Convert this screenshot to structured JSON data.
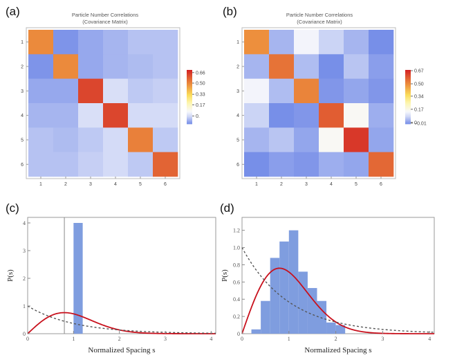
{
  "chart_data": [
    {
      "panel": "(a)",
      "type": "heatmap",
      "title": "Particle Number Correlations",
      "subtitle": "(Covariance Matrix)",
      "row_labels": [
        "1",
        "2",
        "3",
        "4",
        "5",
        "6"
      ],
      "col_labels": [
        "1",
        "2",
        "3",
        "4",
        "5",
        "6"
      ],
      "values": [
        [
          0.5,
          -0.1,
          -0.07,
          -0.05,
          -0.03,
          -0.03
        ],
        [
          -0.1,
          0.5,
          -0.07,
          -0.05,
          -0.04,
          -0.03
        ],
        [
          -0.07,
          -0.07,
          0.64,
          0.02,
          -0.02,
          -0.01
        ],
        [
          -0.05,
          -0.05,
          0.02,
          0.64,
          0.01,
          0.01
        ],
        [
          -0.03,
          -0.04,
          -0.02,
          0.01,
          0.52,
          -0.02
        ],
        [
          -0.03,
          -0.03,
          -0.01,
          0.01,
          -0.02,
          0.58
        ]
      ],
      "legend": {
        "ticks": [
          "0.66",
          "0.50",
          "0.33",
          "0.17",
          "0."
        ],
        "tick_values": [
          0.66,
          0.5,
          0.33,
          0.17,
          0.0
        ],
        "min": -0.12,
        "max": 0.7
      }
    },
    {
      "panel": "(b)",
      "type": "heatmap",
      "title": "Particle Number Correlations",
      "subtitle": "(Covariance Matrix)",
      "row_labels": [
        "1",
        "2",
        "3",
        "4",
        "5",
        "6"
      ],
      "col_labels": [
        "1",
        "2",
        "3",
        "4",
        "5",
        "6"
      ],
      "values": [
        [
          0.5,
          0.04,
          0.14,
          0.08,
          0.04,
          -0.01
        ],
        [
          0.04,
          0.55,
          0.05,
          -0.01,
          0.06,
          0.01
        ],
        [
          0.14,
          0.05,
          0.52,
          0.0,
          0.02,
          0.0
        ],
        [
          0.08,
          -0.01,
          0.0,
          0.59,
          0.16,
          0.03
        ],
        [
          0.04,
          0.06,
          0.02,
          0.16,
          0.65,
          0.02
        ],
        [
          -0.01,
          0.01,
          0.0,
          0.03,
          0.02,
          0.57
        ]
      ],
      "legend": {
        "ticks": [
          "0.67",
          "0.50",
          "0.34",
          "0.17",
          "0",
          "−0.01"
        ],
        "tick_values": [
          0.67,
          0.5,
          0.34,
          0.17,
          0.0,
          -0.01
        ],
        "min": -0.02,
        "max": 0.68
      }
    },
    {
      "panel": "(c)",
      "type": "bar",
      "xlabel": "Normalized Spacing s",
      "ylabel": "P(s)",
      "xlim": [
        0,
        4.1
      ],
      "ylim": [
        0,
        4.2
      ],
      "x_ticks": [
        "0",
        "1",
        "2",
        "3",
        "4"
      ],
      "y_ticks": [
        "0",
        "1",
        "2",
        "3",
        "4"
      ],
      "histogram": {
        "bin_edges": [
          1.0,
          1.2
        ],
        "heights": [
          4.0
        ],
        "color": "#7f9ddf"
      },
      "vertical_marker_x": 0.8,
      "curves": [
        {
          "kind": "wigner_surmise",
          "style": "solid",
          "color": "#c8101c"
        },
        {
          "kind": "poisson_exp",
          "style": "dashed",
          "color": "#555555"
        }
      ]
    },
    {
      "panel": "(d)",
      "type": "bar",
      "xlabel": "Normalized Spacing s",
      "ylabel": "P(s)",
      "xlim": [
        0,
        4.1
      ],
      "ylim": [
        0,
        1.35
      ],
      "x_ticks": [
        "0",
        "1",
        "2",
        "3",
        "4"
      ],
      "y_ticks": [
        "0",
        "0.2",
        "0.4",
        "0.6",
        "0.8",
        "1.0",
        "1.2"
      ],
      "histogram": {
        "bin_edges": [
          0.2,
          0.4,
          0.6,
          0.8,
          1.0,
          1.2,
          1.4,
          1.6,
          1.8,
          2.0,
          2.2
        ],
        "heights": [
          0.05,
          0.38,
          0.88,
          1.07,
          1.2,
          0.72,
          0.53,
          0.38,
          0.13,
          0.1
        ],
        "color": "#7f9ddf"
      },
      "curves": [
        {
          "kind": "wigner_surmise",
          "style": "solid",
          "color": "#c8101c"
        },
        {
          "kind": "poisson_exp",
          "style": "dashed",
          "color": "#555555"
        }
      ]
    }
  ]
}
